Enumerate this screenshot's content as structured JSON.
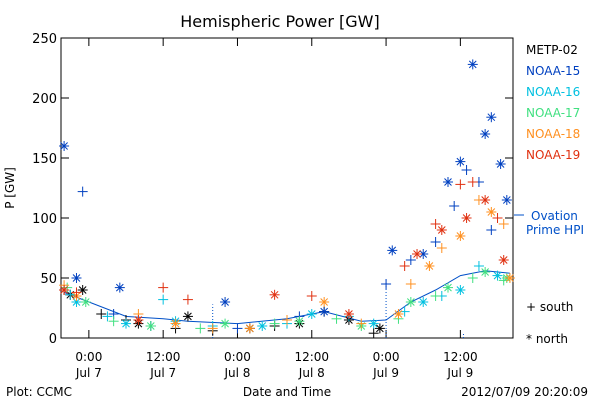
{
  "chart_data": {
    "type": "scatter",
    "title": "Hemispheric Power [GW]",
    "ylabel": "P [GW]",
    "xlabel": "Date and Time",
    "ylim": [
      0,
      250
    ],
    "xlim": [
      "2012-07-06T19:30",
      "2012-07-09T20:30"
    ],
    "y_ticks": [
      0,
      50,
      100,
      150,
      200,
      250
    ],
    "x_ticks": [
      {
        "time": "2012-07-07T00:00",
        "hour": "0:00",
        "date": "Jul 7"
      },
      {
        "time": "2012-07-07T12:00",
        "hour": "12:00",
        "date": "Jul 7"
      },
      {
        "time": "2012-07-08T00:00",
        "hour": "0:00",
        "date": "Jul 8"
      },
      {
        "time": "2012-07-08T12:00",
        "hour": "12:00",
        "date": "Jul 8"
      },
      {
        "time": "2012-07-09T00:00",
        "hour": "0:00",
        "date": "Jul 9"
      },
      {
        "time": "2012-07-09T12:00",
        "hour": "12:00",
        "date": "Jul 9"
      }
    ],
    "legend_placement": "right",
    "marker_legend": {
      "south": "+ south",
      "north": "* north"
    },
    "ovation_label_1": "Ovation",
    "ovation_label_2": "Prime HPI",
    "ovation": {
      "color": "#0050c8",
      "x": [
        "2012-07-06T20:00",
        "2012-07-07T06:00",
        "2012-07-07T12:00",
        "2012-07-07T16:00",
        "2012-07-08T00:00",
        "2012-07-08T08:00",
        "2012-07-08T14:00",
        "2012-07-08T20:00",
        "2012-07-09T00:00",
        "2012-07-09T04:00",
        "2012-07-09T08:00",
        "2012-07-09T12:00",
        "2012-07-09T16:00",
        "2012-07-09T20:00"
      ],
      "y": [
        38,
        18,
        16,
        14,
        12,
        16,
        22,
        14,
        15,
        30,
        40,
        52,
        56,
        54
      ],
      "spikes": [
        {
          "x": "2012-07-07T20:00",
          "y": 28
        },
        {
          "x": "2012-07-09T00:00",
          "y": 48
        },
        {
          "x": "2012-07-09T12:30",
          "y": 5
        }
      ]
    },
    "series": [
      {
        "name": "METP-02",
        "color": "#000000",
        "south": {
          "x": [
            "2012-07-06T20:00",
            "2012-07-07T02:00",
            "2012-07-07T06:00",
            "2012-07-07T14:00",
            "2012-07-07T20:00",
            "2012-07-08T06:00",
            "2012-07-08T14:00",
            "2012-07-08T22:00"
          ],
          "y": [
            40,
            20,
            15,
            8,
            6,
            10,
            22,
            4
          ]
        },
        "north": {
          "x": [
            "2012-07-06T21:00",
            "2012-07-06T23:00",
            "2012-07-07T08:00",
            "2012-07-07T16:00",
            "2012-07-08T02:00",
            "2012-07-08T10:00",
            "2012-07-08T18:00",
            "2012-07-08T23:00"
          ],
          "y": [
            36,
            40,
            12,
            18,
            8,
            12,
            15,
            8
          ]
        }
      },
      {
        "name": "NOAA-15",
        "color": "#0040c0",
        "south": {
          "x": [
            "2012-07-06T23:00",
            "2012-07-07T04:00",
            "2012-07-07T10:00",
            "2012-07-08T00:00",
            "2012-07-08T10:00",
            "2012-07-09T00:00",
            "2012-07-09T04:00",
            "2012-07-09T08:00",
            "2012-07-09T11:00",
            "2012-07-09T13:00",
            "2012-07-09T15:00",
            "2012-07-09T17:00"
          ],
          "y": [
            122,
            20,
            10,
            8,
            18,
            45,
            65,
            80,
            110,
            140,
            130,
            90
          ]
        },
        "north": {
          "x": [
            "2012-07-06T20:00",
            "2012-07-06T22:00",
            "2012-07-07T05:00",
            "2012-07-07T22:00",
            "2012-07-08T14:00",
            "2012-07-09T01:00",
            "2012-07-09T06:00",
            "2012-07-09T10:00",
            "2012-07-09T12:00",
            "2012-07-09T14:00",
            "2012-07-09T16:00",
            "2012-07-09T17:00",
            "2012-07-09T18:30",
            "2012-07-09T19:30"
          ],
          "y": [
            160,
            50,
            42,
            30,
            22,
            73,
            70,
            130,
            147,
            228,
            170,
            184,
            145,
            115
          ]
        }
      },
      {
        "name": "NOAA-16",
        "color": "#00c0e0",
        "south": {
          "x": [
            "2012-07-06T21:00",
            "2012-07-07T03:00",
            "2012-07-07T12:00",
            "2012-07-07T20:00",
            "2012-07-08T08:00",
            "2012-07-08T18:00",
            "2012-07-09T03:00",
            "2012-07-09T09:00",
            "2012-07-09T15:00"
          ],
          "y": [
            36,
            18,
            32,
            10,
            12,
            18,
            22,
            35,
            60
          ]
        },
        "north": {
          "x": [
            "2012-07-06T22:00",
            "2012-07-07T06:00",
            "2012-07-07T14:00",
            "2012-07-08T04:00",
            "2012-07-08T12:00",
            "2012-07-08T22:00",
            "2012-07-09T06:00",
            "2012-07-09T12:00",
            "2012-07-09T18:00"
          ],
          "y": [
            30,
            12,
            14,
            10,
            20,
            12,
            30,
            40,
            52
          ]
        }
      },
      {
        "name": "NOAA-17",
        "color": "#40e080",
        "south": {
          "x": [
            "2012-07-06T20:30",
            "2012-07-07T04:00",
            "2012-07-07T18:00",
            "2012-07-08T06:00",
            "2012-07-08T16:00",
            "2012-07-09T02:00",
            "2012-07-09T08:00",
            "2012-07-09T14:00",
            "2012-07-09T19:00"
          ],
          "y": [
            42,
            14,
            8,
            12,
            16,
            16,
            35,
            50,
            48
          ]
        },
        "north": {
          "x": [
            "2012-07-06T23:30",
            "2012-07-07T10:00",
            "2012-07-07T22:00",
            "2012-07-08T10:00",
            "2012-07-08T20:00",
            "2012-07-09T04:00",
            "2012-07-09T10:00",
            "2012-07-09T16:00",
            "2012-07-09T19:30"
          ],
          "y": [
            30,
            10,
            12,
            14,
            10,
            30,
            42,
            55,
            50
          ]
        }
      },
      {
        "name": "NOAA-18",
        "color": "#ff9020",
        "south": {
          "x": [
            "2012-07-06T20:00",
            "2012-07-07T08:00",
            "2012-07-07T20:00",
            "2012-07-08T08:00",
            "2012-07-08T20:00",
            "2012-07-09T04:00",
            "2012-07-09T09:00",
            "2012-07-09T15:00",
            "2012-07-09T19:00"
          ],
          "y": [
            44,
            20,
            8,
            15,
            12,
            45,
            75,
            115,
            95
          ]
        },
        "north": {
          "x": [
            "2012-07-06T22:00",
            "2012-07-07T14:00",
            "2012-07-08T02:00",
            "2012-07-08T14:00",
            "2012-07-09T02:00",
            "2012-07-09T07:00",
            "2012-07-09T12:00",
            "2012-07-09T17:00",
            "2012-07-09T20:00"
          ],
          "y": [
            35,
            12,
            8,
            30,
            20,
            60,
            85,
            105,
            50
          ]
        }
      },
      {
        "name": "NOAA-19",
        "color": "#e03010",
        "south": {
          "x": [
            "2012-07-06T22:00",
            "2012-07-07T12:00",
            "2012-07-07T16:00",
            "2012-07-08T12:00",
            "2012-07-09T03:00",
            "2012-07-09T08:00",
            "2012-07-09T12:00",
            "2012-07-09T14:00",
            "2012-07-09T18:00"
          ],
          "y": [
            38,
            42,
            32,
            35,
            60,
            95,
            128,
            130,
            100
          ]
        },
        "north": {
          "x": [
            "2012-07-06T20:00",
            "2012-07-07T08:00",
            "2012-07-08T06:00",
            "2012-07-08T18:00",
            "2012-07-09T05:00",
            "2012-07-09T09:00",
            "2012-07-09T13:00",
            "2012-07-09T16:00",
            "2012-07-09T19:00"
          ],
          "y": [
            40,
            15,
            36,
            20,
            70,
            90,
            100,
            115,
            65
          ]
        }
      }
    ]
  },
  "footer": {
    "left": "Plot: CCMC",
    "right": "2012/07/09 20:20:09"
  }
}
